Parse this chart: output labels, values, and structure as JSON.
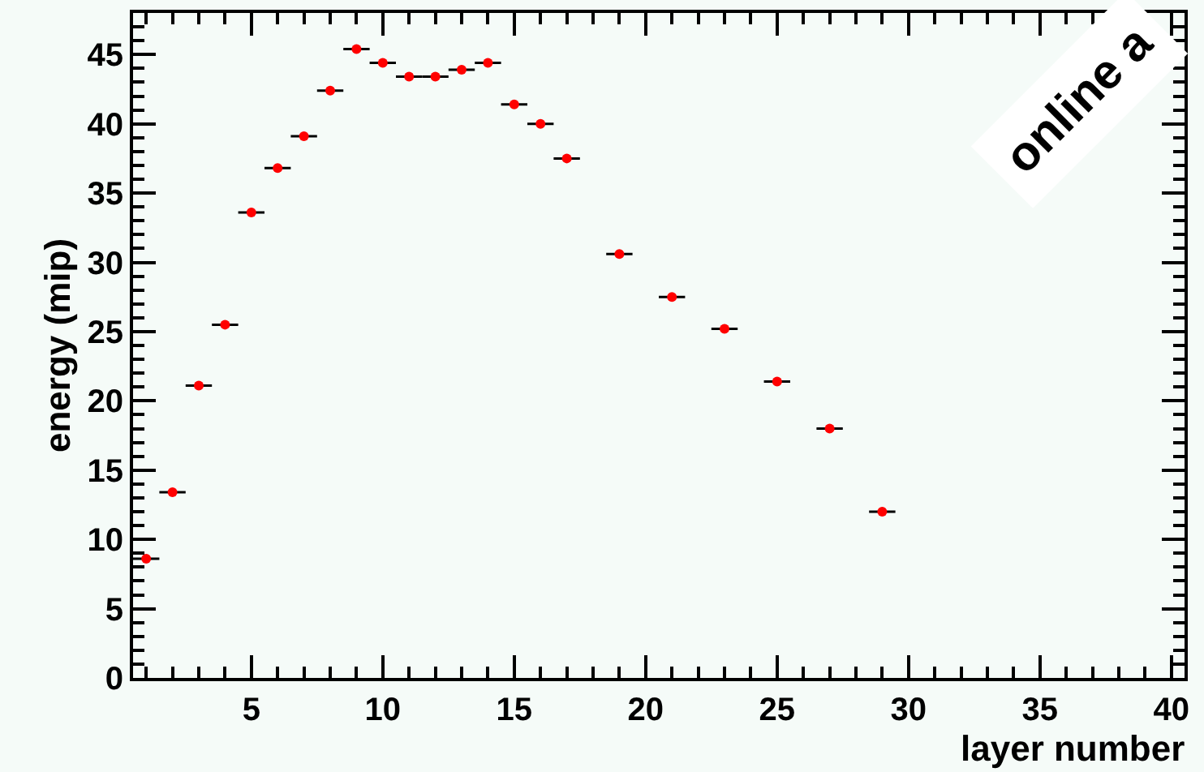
{
  "chart_data": {
    "type": "scatter",
    "xlabel": "layer number",
    "ylabel": "energy (mip)",
    "x": [
      1,
      2,
      3,
      4,
      5,
      6,
      7,
      8,
      9,
      10,
      11,
      12,
      13,
      14,
      15,
      16,
      17,
      19,
      21,
      23,
      25,
      27,
      29
    ],
    "values": [
      8.6,
      13.4,
      21.1,
      25.5,
      33.6,
      36.8,
      39.1,
      42.4,
      45.4,
      44.4,
      43.4,
      43.4,
      43.9,
      44.4,
      41.4,
      40.0,
      37.5,
      30.6,
      27.5,
      25.2,
      21.4,
      18.0,
      12.0
    ],
    "xerrors": [
      0.5,
      0.5,
      0.5,
      0.5,
      0.5,
      0.5,
      0.5,
      0.5,
      0.5,
      0.5,
      0.5,
      0.5,
      0.5,
      0.5,
      0.5,
      0.5,
      0.5,
      0.5,
      0.5,
      0.5,
      0.5,
      0.5,
      0.5
    ],
    "color": "#ff0000",
    "marker": "circle",
    "xlim": [
      0.5,
      40.5
    ],
    "xticks": [
      5,
      10,
      15,
      20,
      25,
      30,
      35,
      40
    ],
    "ylim": [
      0,
      48
    ],
    "yticks": [
      0,
      5,
      10,
      15,
      20,
      25,
      30,
      35,
      40,
      45
    ],
    "annotations": [
      "online a"
    ]
  }
}
